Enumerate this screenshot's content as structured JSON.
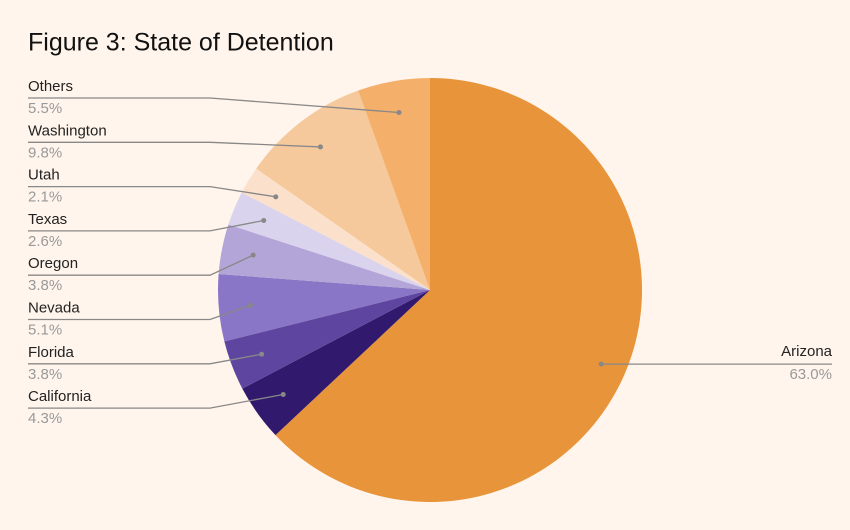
{
  "chart_data": {
    "type": "pie",
    "title": "Figure 3: State of Detention",
    "categories": [
      "Arizona",
      "California",
      "Florida",
      "Nevada",
      "Oregon",
      "Texas",
      "Utah",
      "Washington",
      "Others"
    ],
    "values": [
      63.0,
      4.3,
      3.8,
      5.1,
      3.8,
      2.6,
      2.1,
      9.8,
      5.5
    ],
    "value_labels": [
      "63.0%",
      "4.3%",
      "3.8%",
      "5.1%",
      "3.8%",
      "2.6%",
      "2.1%",
      "9.8%",
      "5.5%"
    ],
    "colors": [
      "#e8943a",
      "#311a6e",
      "#5e45a0",
      "#8a76c6",
      "#b3a5d8",
      "#d9d3ee",
      "#fbe0cc",
      "#f5c99c",
      "#f4b06b"
    ]
  }
}
